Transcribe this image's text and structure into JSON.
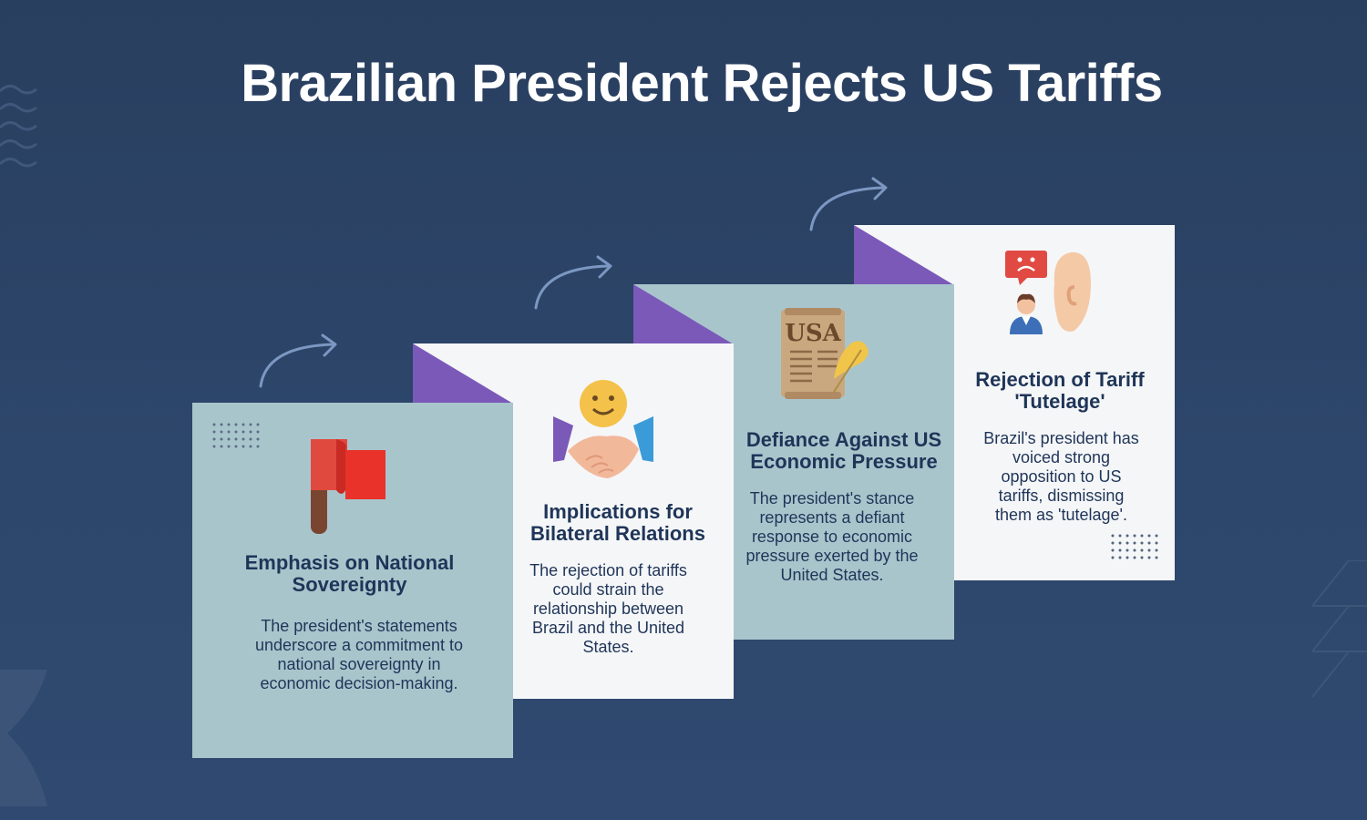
{
  "title": "Brazilian President Rejects US Tariffs",
  "colors": {
    "background": "#2b4365",
    "card_teal": "#a9c5cc",
    "card_white": "#f5f6f8",
    "fold_purple": "#7a59b9",
    "heading": "#1f3558",
    "arrow": "#7b97c2"
  },
  "cards": [
    {
      "icon": "red-flag-icon",
      "heading": "Emphasis on National Sovereignty",
      "body": "The president's statements underscore a commitment to national sovereignty in economic decision-making."
    },
    {
      "icon": "handshake-smile-icon",
      "heading": "Implications for Bilateral Relations",
      "body": "The rejection of tariffs could strain the relationship between Brazil and the United States."
    },
    {
      "icon": "usa-document-quill-icon",
      "icon_text": "USA",
      "heading": "Defiance Against US Economic Pressure",
      "body": "The president's stance represents a defiant response to economic pressure exerted by the United States."
    },
    {
      "icon": "sad-message-ear-person-icon",
      "heading": "Rejection of Tariff 'Tutelage'",
      "body": "Brazil's president has voiced strong opposition to US tariffs, dismissing them as 'tutelage'."
    }
  ]
}
